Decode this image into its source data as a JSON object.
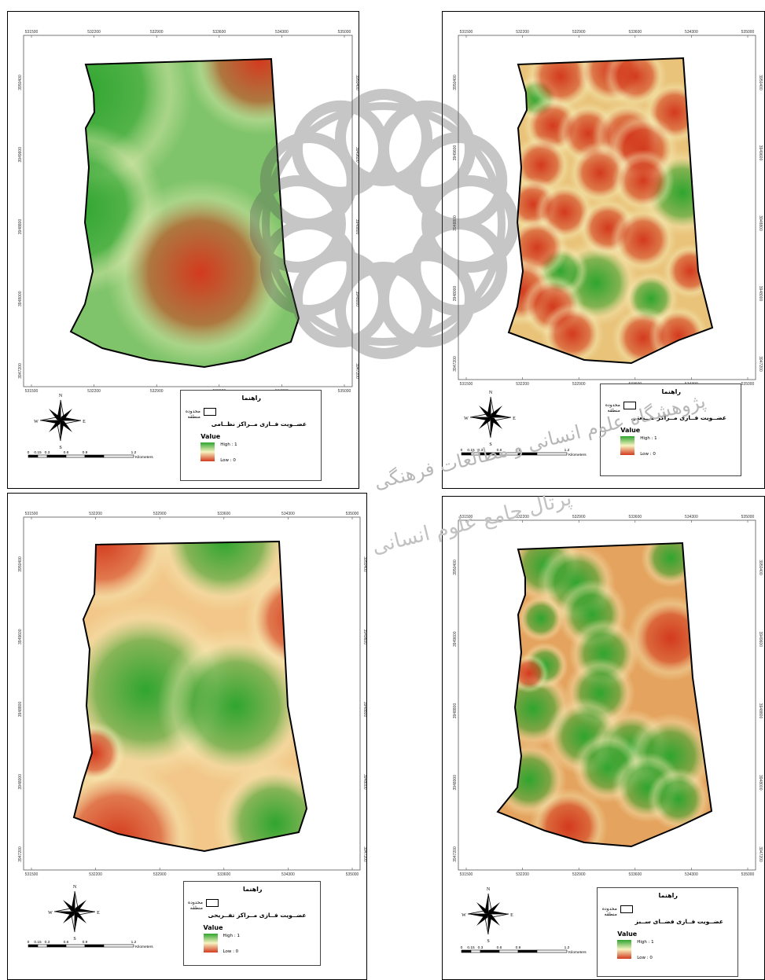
{
  "maps": [
    {
      "id": "military",
      "x_ticks": [
        "531500",
        "532200",
        "532900",
        "533600",
        "534300",
        "535000"
      ],
      "y_ticks": [
        "3950400",
        "3949600",
        "3948800",
        "3948000",
        "3947200"
      ],
      "legend": {
        "title": "راهنما",
        "boundary_label": "محدوده منطقه",
        "layer": "عضــویت فــازی مــراکز نظــامی",
        "value_label": "Value",
        "high": "High : 1",
        "low": "Low : 0"
      },
      "scale": {
        "labels": [
          "0",
          "0.15",
          "0.3",
          "0.6",
          "0.9",
          "1.2"
        ],
        "unit": "Kilometers"
      },
      "compass": {
        "n": "N",
        "s": "S",
        "e": "E",
        "w": "W"
      }
    },
    {
      "id": "industrial",
      "x_ticks": [
        "531500",
        "532200",
        "532900",
        "533600",
        "534300",
        "535000"
      ],
      "y_ticks": [
        "3950400",
        "3949600",
        "3948800",
        "3948000",
        "3947200"
      ],
      "legend": {
        "title": "راهنما",
        "boundary_label": "محدوده منطقه",
        "layer": "عضــویت فــازی مــراکز صــنعتی",
        "value_label": "Value",
        "high": "High : 1",
        "low": "Low : 0"
      },
      "scale": {
        "labels": [
          "0",
          "0.15",
          "0.3",
          "0.6",
          "0.9",
          "1.2"
        ],
        "unit": "Kilometers"
      },
      "compass": {
        "n": "N",
        "s": "S",
        "e": "E",
        "w": "W"
      }
    },
    {
      "id": "recreational",
      "x_ticks": [
        "531500",
        "532200",
        "532900",
        "533600",
        "534300",
        "535000"
      ],
      "y_ticks": [
        "3950400",
        "3949600",
        "3948800",
        "3948000",
        "3947200"
      ],
      "legend": {
        "title": "راهنما",
        "boundary_label": "محدوده منطقه",
        "layer": "عضــویت فــازی مــراکز تفــریحی",
        "value_label": "Value",
        "high": "High : 1",
        "low": "Low : 0"
      },
      "scale": {
        "labels": [
          "0",
          "0.15",
          "0.3",
          "0.6",
          "0.9",
          "1.2"
        ],
        "unit": "Kilometers"
      },
      "compass": {
        "n": "N",
        "s": "S",
        "e": "E",
        "w": "W"
      }
    },
    {
      "id": "greenspace",
      "x_ticks": [
        "531500",
        "532200",
        "532900",
        "533600",
        "534300",
        "535000"
      ],
      "y_ticks": [
        "3950400",
        "3949600",
        "3948800",
        "3948000",
        "3947200"
      ],
      "legend": {
        "title": "راهنما",
        "boundary_label": "محدوده منطقه",
        "layer": "عضــویت فــازی فضــای ســبز",
        "value_label": "Value",
        "high": "High : 1",
        "low": "Low : 0"
      },
      "scale": {
        "labels": [
          "0",
          "0.15",
          "0.3",
          "0.6",
          "0.9",
          "1.2"
        ],
        "unit": "Kilometers"
      },
      "compass": {
        "n": "N",
        "s": "S",
        "e": "E",
        "w": "W"
      }
    }
  ],
  "watermark": {
    "line1": "پژوهشگاه علوم انسانی و مطالعات فرهنگی",
    "line2": "پرتال جامع علوم انسانی"
  },
  "colors": {
    "high": "#2fa52f",
    "mid": "#f7f3c0",
    "low": "#d33a1e"
  }
}
